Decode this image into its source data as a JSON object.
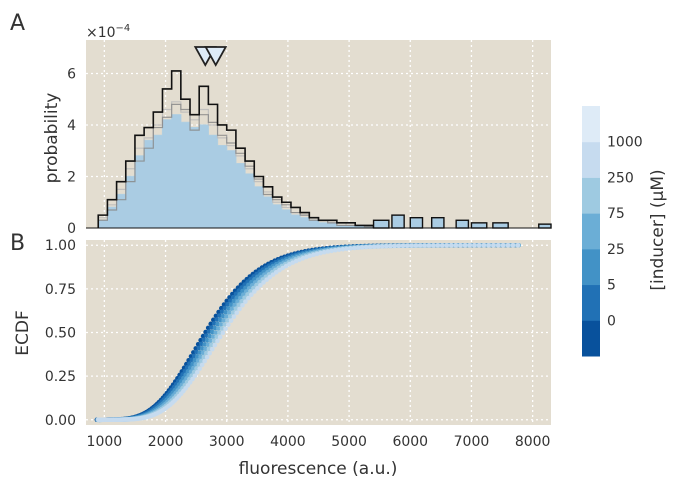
{
  "chart_data": [
    {
      "panel": "A",
      "type": "bar",
      "ylabel": "probability",
      "y_multiplier": "×10",
      "y_exponent": "−4",
      "xlim": [
        700,
        8300
      ],
      "ylim": [
        0,
        7.3
      ],
      "yticks": [
        "0",
        "2",
        "4",
        "6"
      ],
      "ytick_values": [
        0,
        2,
        4,
        6
      ],
      "grid": true,
      "bin_edges": [
        900,
        1050,
        1200,
        1350,
        1500,
        1650,
        1800,
        1950,
        2100,
        2250,
        2400,
        2550,
        2700,
        2850,
        3000,
        3150,
        3300,
        3450,
        3600,
        3750,
        3900,
        4050,
        4200,
        4350,
        4500,
        4650,
        4800,
        4950,
        5100,
        5250,
        5400
      ],
      "series": [
        {
          "inducer": "1000",
          "color": "#aacce3",
          "values": [
            0.3,
            0.8,
            1.3,
            2.0,
            2.8,
            3.4,
            3.6,
            4.2,
            4.4,
            4.1,
            3.9,
            4.0,
            3.6,
            3.2,
            3.0,
            2.5,
            2.1,
            1.6,
            1.2,
            0.9,
            0.7,
            0.5,
            0.4,
            0.3,
            0.2,
            0.2,
            0.1,
            0.1,
            0.1,
            0.05
          ]
        },
        {
          "inducer": "250",
          "color": "#bbbbbb",
          "values": [
            0.4,
            0.9,
            1.5,
            2.3,
            3.1,
            3.5,
            4.0,
            4.6,
            4.9,
            4.5,
            4.2,
            4.6,
            4.0,
            3.5,
            3.2,
            2.8,
            2.3,
            1.8,
            1.4,
            1.0,
            0.8,
            0.6,
            0.5,
            0.4,
            0.3,
            0.2,
            0.2,
            0.1,
            0.1,
            0.1
          ]
        },
        {
          "inducer": "75",
          "color": "#888888",
          "values": [
            0.3,
            0.7,
            1.1,
            1.8,
            2.6,
            3.1,
            3.9,
            4.3,
            4.8,
            4.6,
            3.8,
            4.4,
            4.1,
            3.6,
            3.3,
            2.9,
            2.4,
            1.9,
            1.3,
            1.1,
            0.9,
            0.6,
            0.5,
            0.3,
            0.3,
            0.2,
            0.1,
            0.1,
            0.1,
            0.05
          ]
        },
        {
          "inducer": "0",
          "color": "#111111",
          "values": [
            0.5,
            1.1,
            1.8,
            2.6,
            3.6,
            3.9,
            4.5,
            5.4,
            6.1,
            5.0,
            4.4,
            5.5,
            4.8,
            4.0,
            3.8,
            3.1,
            2.6,
            2.0,
            1.6,
            1.2,
            1.0,
            0.8,
            0.6,
            0.4,
            0.3,
            0.3,
            0.2,
            0.2,
            0.1,
            0.1
          ]
        }
      ],
      "tail_bars": [
        {
          "x0": 5400,
          "x1": 5650,
          "value": 0.3
        },
        {
          "x0": 5700,
          "x1": 5900,
          "value": 0.5
        },
        {
          "x0": 6000,
          "x1": 6200,
          "value": 0.4
        },
        {
          "x0": 6350,
          "x1": 6550,
          "value": 0.4
        },
        {
          "x0": 6750,
          "x1": 6950,
          "value": 0.3
        },
        {
          "x0": 7000,
          "x1": 7250,
          "value": 0.2
        },
        {
          "x0": 7350,
          "x1": 7600,
          "value": 0.2
        },
        {
          "x0": 8100,
          "x1": 8300,
          "value": 0.15
        }
      ],
      "means": [
        {
          "inducer": "0",
          "x": 2650,
          "color": "#deebf7"
        },
        {
          "inducer": "1000",
          "x": 2820,
          "color": "#deebf7"
        }
      ]
    },
    {
      "panel": "B",
      "type": "scatter",
      "xlabel": "fluorescence (a.u.)",
      "ylabel": "ECDF",
      "xlim": [
        700,
        8300
      ],
      "ylim": [
        -0.03,
        1.03
      ],
      "xticks": [
        "1000",
        "2000",
        "3000",
        "4000",
        "5000",
        "6000",
        "7000",
        "8000"
      ],
      "xtick_values": [
        1000,
        2000,
        3000,
        4000,
        5000,
        6000,
        7000,
        8000
      ],
      "yticks": [
        "0.00",
        "0.25",
        "0.50",
        "0.75",
        "1.00"
      ],
      "ytick_values": [
        0,
        0.25,
        0.5,
        0.75,
        1.0
      ],
      "grid": true,
      "series": [
        {
          "inducer": "0",
          "color": "#08519c",
          "median": 2650,
          "spread": 700
        },
        {
          "inducer": "5",
          "color": "#2171b5",
          "median": 2700,
          "spread": 710
        },
        {
          "inducer": "25",
          "color": "#4292c6",
          "median": 2760,
          "spread": 720
        },
        {
          "inducer": "75",
          "color": "#6baed6",
          "median": 2820,
          "spread": 730
        },
        {
          "inducer": "250",
          "color": "#9ecae1",
          "median": 2880,
          "spread": 740
        },
        {
          "inducer": "1000",
          "color": "#c6dbef",
          "median": 2940,
          "spread": 750
        }
      ]
    }
  ],
  "colorbar": {
    "label": "[inducer] (μM)",
    "ticks": [
      "0",
      "5",
      "25",
      "75",
      "250",
      "1000"
    ],
    "colors": [
      "#08519c",
      "#2171b5",
      "#4292c6",
      "#6baed6",
      "#9ecae1",
      "#c6dbef",
      "#deebf7"
    ]
  },
  "panel_labels": [
    "A",
    "B"
  ],
  "style": {
    "axes_bg": "#e3ddd0",
    "grid": "#ffffff",
    "text": "#333333"
  }
}
